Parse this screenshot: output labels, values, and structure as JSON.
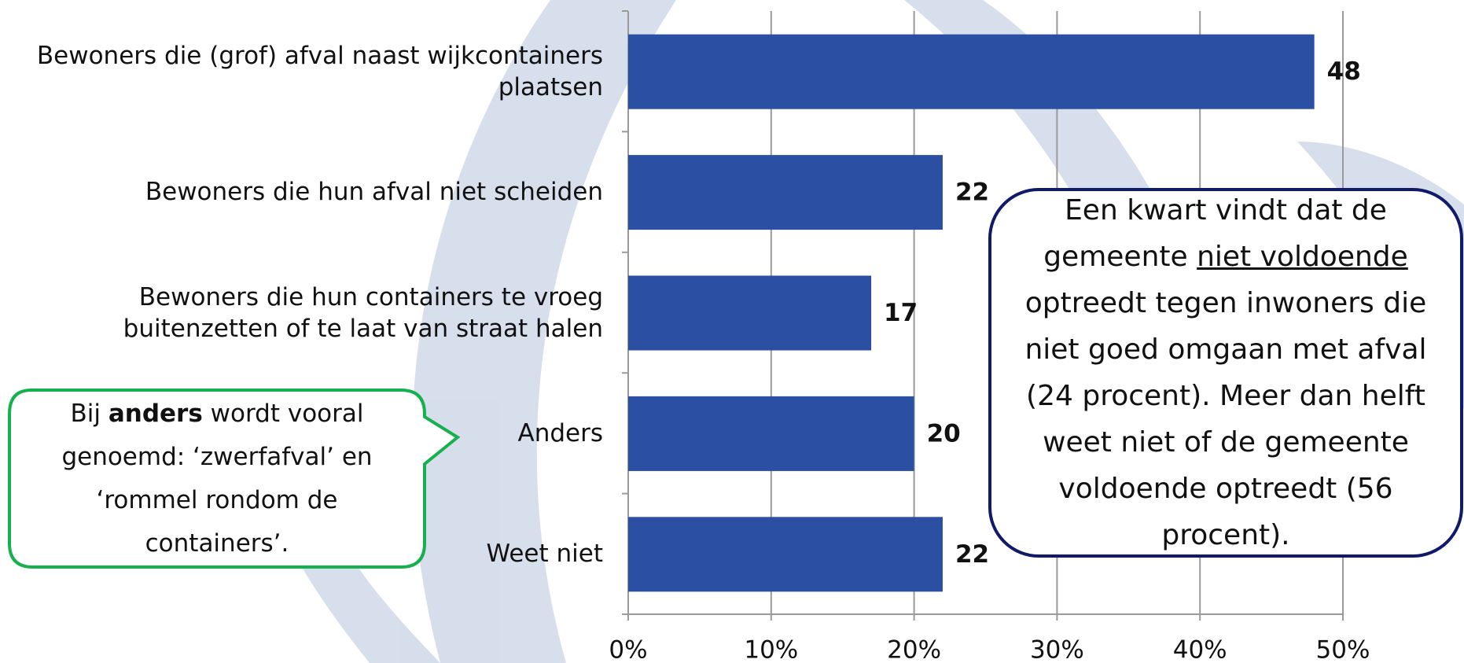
{
  "chart_data": {
    "type": "bar",
    "orientation": "horizontal",
    "categories": [
      "Bewoners die (grof) afval naast wijkcontainers\nplaatsen",
      "Bewoners die hun afval niet scheiden",
      "Bewoners die hun containers te vroeg\nbuitenzetten of te laat van straat halen",
      "Anders",
      "Weet niet"
    ],
    "values": [
      48,
      22,
      17,
      20,
      22
    ],
    "color": "#2a4fa3",
    "xlim": [
      0,
      50
    ],
    "xticks": [
      {
        "value": 0,
        "label": "0%"
      },
      {
        "value": 10,
        "label": "10%"
      },
      {
        "value": 20,
        "label": "20%"
      },
      {
        "value": 30,
        "label": "30%"
      },
      {
        "value": 40,
        "label": "40%"
      },
      {
        "value": 50,
        "label": "50%"
      }
    ],
    "grid": true,
    "annotations": [
      {
        "parts": [
          "Bij ",
          "anders",
          " wordt vooral genoemd: ‘zwerfafval’ en ‘rommel rondom de containers’."
        ]
      },
      {
        "parts": [
          "Een kwart vindt dat de gemeente ",
          "niet voldoende",
          " optreedt tegen inwoners die niet goed omgaan met afval (24 procent). Meer dan helft weet niet of de gemeente voldoende optreedt (56 procent)."
        ]
      }
    ]
  }
}
